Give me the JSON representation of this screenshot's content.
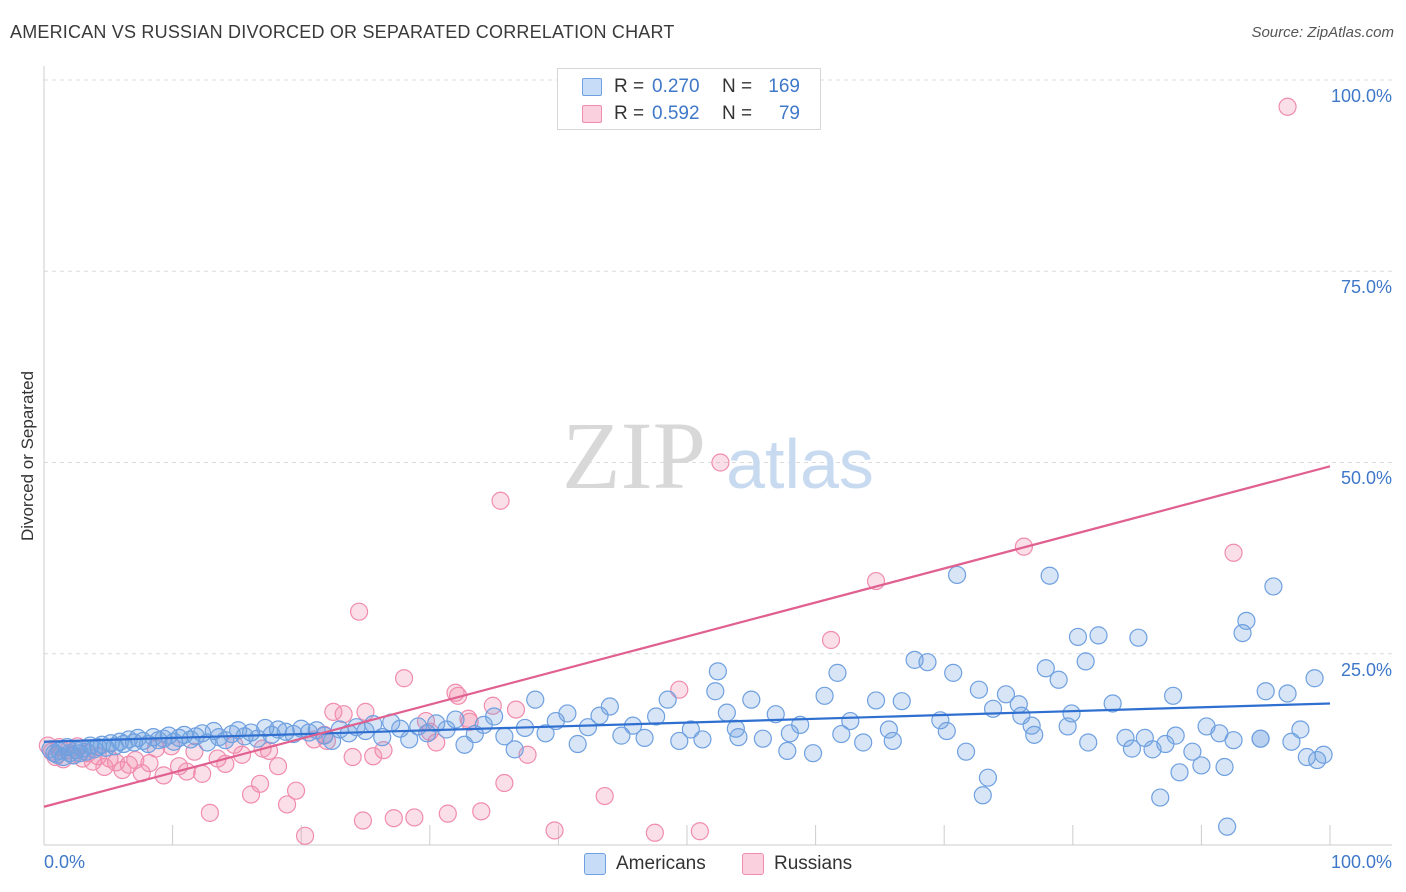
{
  "title": "AMERICAN VS RUSSIAN DIVORCED OR SEPARATED CORRELATION CHART",
  "source": "Source: ZipAtlas.com",
  "watermark": {
    "zip": "ZIP",
    "atlas": "atlas"
  },
  "legend": {
    "rows": [
      {
        "r_label": "R =",
        "r_value": "0.270",
        "n_label": "N =",
        "n_value": "169",
        "color": "#6fa0e0"
      },
      {
        "r_label": "R =",
        "r_value": "0.592",
        "n_label": "N =",
        "n_value": "79",
        "color": "#f08cae"
      }
    ]
  },
  "bottom_legend": [
    {
      "label": "Americans",
      "color": "#6fa0e0"
    },
    {
      "label": "Russians",
      "color": "#f08cae"
    }
  ],
  "chart_data": {
    "type": "scatter",
    "title": "AMERICAN VS RUSSIAN DIVORCED OR SEPARATED CORRELATION CHART",
    "xlabel": "",
    "ylabel": "Divorced or Separated",
    "xlim": [
      0,
      100
    ],
    "ylim": [
      0,
      100
    ],
    "x_tick_labels": [
      "0.0%",
      "100.0%"
    ],
    "y_tick_labels": [
      "25.0%",
      "50.0%",
      "75.0%",
      "100.0%"
    ],
    "y_ticks": [
      25,
      50,
      75,
      100
    ],
    "grid": "horizontal dashed",
    "legend_position": "top-center",
    "series": [
      {
        "name": "Americans",
        "color": "#6fa0e0",
        "line_color": "#2f6fd0",
        "trend": {
          "x": [
            0,
            100
          ],
          "y": [
            13.5,
            18.5
          ]
        },
        "points": [
          [
            0.5,
            12.5
          ],
          [
            0.8,
            12
          ],
          [
            1,
            11.8
          ],
          [
            1.2,
            12.3
          ],
          [
            1.5,
            11.5
          ],
          [
            1.8,
            12.8
          ],
          [
            2,
            12
          ],
          [
            2.3,
            11.7
          ],
          [
            2.5,
            12.4
          ],
          [
            2.8,
            12
          ],
          [
            3,
            12.6
          ],
          [
            3.3,
            12.2
          ],
          [
            3.6,
            13
          ],
          [
            3.9,
            12.5
          ],
          [
            4.2,
            12.8
          ],
          [
            4.5,
            13.1
          ],
          [
            4.8,
            12.7
          ],
          [
            5.2,
            13.3
          ],
          [
            5.5,
            12.9
          ],
          [
            5.9,
            13.5
          ],
          [
            6.2,
            13.2
          ],
          [
            6.6,
            13.8
          ],
          [
            7,
            13.4
          ],
          [
            7.3,
            14
          ],
          [
            7.7,
            13.6
          ],
          [
            8.1,
            13.2
          ],
          [
            8.5,
            14.1
          ],
          [
            8.9,
            13.7
          ],
          [
            9.3,
            13.9
          ],
          [
            9.7,
            14.3
          ],
          [
            10.1,
            13.5
          ],
          [
            10.5,
            14
          ],
          [
            10.9,
            14.4
          ],
          [
            11.4,
            13.8
          ],
          [
            11.8,
            14.2
          ],
          [
            12.3,
            14.6
          ],
          [
            12.7,
            13.4
          ],
          [
            13.2,
            14.9
          ],
          [
            13.6,
            14.1
          ],
          [
            14.1,
            13.7
          ],
          [
            14.6,
            14.5
          ],
          [
            15.1,
            15
          ],
          [
            15.6,
            14.2
          ],
          [
            16.1,
            14.7
          ],
          [
            16.6,
            13.9
          ],
          [
            17.2,
            15.3
          ],
          [
            17.7,
            14.4
          ],
          [
            18.2,
            15.1
          ],
          [
            18.8,
            14.8
          ],
          [
            19.4,
            14.5
          ],
          [
            20,
            15.2
          ],
          [
            20.6,
            14.7
          ],
          [
            21.2,
            15
          ],
          [
            21.8,
            14.3
          ],
          [
            22.4,
            13.6
          ],
          [
            23,
            15.1
          ],
          [
            23.7,
            14.6
          ],
          [
            24.3,
            15.4
          ],
          [
            25,
            14.9
          ],
          [
            25.6,
            15.8
          ],
          [
            26.3,
            14.1
          ],
          [
            27,
            16
          ],
          [
            27.7,
            15.2
          ],
          [
            28.4,
            13.8
          ],
          [
            29.1,
            15.5
          ],
          [
            29.8,
            14.6
          ],
          [
            30.5,
            15.9
          ],
          [
            31.3,
            15.1
          ],
          [
            32,
            16.4
          ],
          [
            32.7,
            13.1
          ],
          [
            33.5,
            14.5
          ],
          [
            34.2,
            15.7
          ],
          [
            35,
            16.8
          ],
          [
            35.8,
            14.2
          ],
          [
            36.6,
            12.5
          ],
          [
            37.4,
            15.3
          ],
          [
            38.2,
            19
          ],
          [
            39,
            14.6
          ],
          [
            39.8,
            16.2
          ],
          [
            40.7,
            17.2
          ],
          [
            41.5,
            13.2
          ],
          [
            42.3,
            15.4
          ],
          [
            43.2,
            16.9
          ],
          [
            44,
            18.1
          ],
          [
            44.9,
            14.3
          ],
          [
            45.8,
            15.6
          ],
          [
            46.7,
            14
          ],
          [
            47.6,
            16.8
          ],
          [
            48.5,
            19
          ],
          [
            49.4,
            13.6
          ],
          [
            50.3,
            15.1
          ],
          [
            51.2,
            13.8
          ],
          [
            52.2,
            20.1
          ],
          [
            53.1,
            17.3
          ],
          [
            54,
            14.1
          ],
          [
            55,
            19
          ],
          [
            55.9,
            13.9
          ],
          [
            56.9,
            17.1
          ],
          [
            57.8,
            12.3
          ],
          [
            58.8,
            15.7
          ],
          [
            59.8,
            12
          ],
          [
            60.7,
            19.5
          ],
          [
            61.7,
            22.5
          ],
          [
            62.7,
            16.2
          ],
          [
            63.7,
            13.4
          ],
          [
            64.7,
            18.9
          ],
          [
            65.7,
            15.1
          ],
          [
            66.7,
            18.8
          ],
          [
            67.7,
            24.2
          ],
          [
            68.7,
            23.9
          ],
          [
            69.7,
            16.3
          ],
          [
            70.7,
            22.5
          ],
          [
            71.7,
            12.2
          ],
          [
            72.7,
            20.3
          ],
          [
            73.8,
            17.8
          ],
          [
            74.8,
            19.7
          ],
          [
            75.8,
            18.4
          ],
          [
            76.8,
            15.6
          ],
          [
            77.9,
            23.1
          ],
          [
            78.9,
            21.6
          ],
          [
            79.9,
            17.2
          ],
          [
            81,
            24
          ],
          [
            82,
            27.4
          ],
          [
            83.1,
            18.5
          ],
          [
            84.1,
            14
          ],
          [
            85.1,
            27.1
          ],
          [
            86.2,
            12.5
          ],
          [
            87.2,
            13.2
          ],
          [
            88.3,
            9.5
          ],
          [
            89.3,
            12.2
          ],
          [
            90.4,
            15.5
          ],
          [
            91.4,
            14.6
          ],
          [
            92.5,
            13.7
          ],
          [
            93.5,
            29.3
          ],
          [
            94.6,
            13.9
          ],
          [
            95.6,
            33.8
          ],
          [
            96.7,
            19.8
          ],
          [
            97.7,
            15.1
          ],
          [
            98.8,
            21.8
          ],
          [
            99.5,
            11.8
          ],
          [
            53.8,
            15.2
          ],
          [
            58,
            14.6
          ],
          [
            62,
            14.5
          ],
          [
            66,
            13.6
          ],
          [
            70.2,
            14.9
          ],
          [
            73.4,
            8.8
          ],
          [
            76,
            16.9
          ],
          [
            80.4,
            27.2
          ],
          [
            84.6,
            12.6
          ],
          [
            86.8,
            6.2
          ],
          [
            88,
            14.3
          ],
          [
            90,
            10.4
          ],
          [
            91.8,
            10.2
          ],
          [
            93.2,
            27.7
          ],
          [
            95,
            20.1
          ],
          [
            97,
            13.5
          ],
          [
            98.2,
            11.5
          ],
          [
            99,
            11.1
          ],
          [
            92,
            2.4
          ],
          [
            79.6,
            15.5
          ],
          [
            73,
            6.5
          ],
          [
            77,
            14.4
          ],
          [
            81.2,
            13.4
          ],
          [
            71,
            35.3
          ],
          [
            78.2,
            35.2
          ],
          [
            85.6,
            14
          ],
          [
            87.8,
            19.5
          ],
          [
            94.6,
            13.9
          ],
          [
            52.4,
            22.7
          ]
        ]
      },
      {
        "name": "Russians",
        "color": "#f08cae",
        "line_color": "#e0608f",
        "trend": {
          "x": [
            0,
            100
          ],
          "y": [
            5,
            49.5
          ]
        },
        "points": [
          [
            0.3,
            13
          ],
          [
            0.6,
            12.2
          ],
          [
            0.9,
            11.5
          ],
          [
            1.2,
            12.8
          ],
          [
            1.5,
            11.2
          ],
          [
            1.9,
            12.4
          ],
          [
            2.2,
            11.8
          ],
          [
            2.6,
            12.9
          ],
          [
            3,
            11.3
          ],
          [
            3.4,
            12
          ],
          [
            3.8,
            10.9
          ],
          [
            4.2,
            11.6
          ],
          [
            4.7,
            10.2
          ],
          [
            5.1,
            11.3
          ],
          [
            5.6,
            10.8
          ],
          [
            6.1,
            9.8
          ],
          [
            6.6,
            10.5
          ],
          [
            7.1,
            11.1
          ],
          [
            7.6,
            9.4
          ],
          [
            8.2,
            10.7
          ],
          [
            8.7,
            12.6
          ],
          [
            9.3,
            9.1
          ],
          [
            9.9,
            12.9
          ],
          [
            10.5,
            10.3
          ],
          [
            11.1,
            9.6
          ],
          [
            11.7,
            12.2
          ],
          [
            12.3,
            9.3
          ],
          [
            12.9,
            4.2
          ],
          [
            13.5,
            11.3
          ],
          [
            14.1,
            10.6
          ],
          [
            14.8,
            13.1
          ],
          [
            15.4,
            11.8
          ],
          [
            16.1,
            6.6
          ],
          [
            16.8,
            8
          ],
          [
            17.5,
            12.3
          ],
          [
            18.2,
            10.3
          ],
          [
            18.9,
            5.3
          ],
          [
            19.6,
            7.1
          ],
          [
            20.3,
            1.2
          ],
          [
            21,
            13.8
          ],
          [
            21.8,
            14.4
          ],
          [
            22.5,
            17.4
          ],
          [
            23.3,
            17.1
          ],
          [
            24,
            11.5
          ],
          [
            24.8,
            3.2
          ],
          [
            25.6,
            11.6
          ],
          [
            26.4,
            12.4
          ],
          [
            27.2,
            3.5
          ],
          [
            28,
            21.8
          ],
          [
            28.8,
            3.6
          ],
          [
            29.7,
            16.2
          ],
          [
            30.5,
            13.4
          ],
          [
            31.4,
            4.1
          ],
          [
            32.2,
            19.5
          ],
          [
            33.1,
            16.1
          ],
          [
            34,
            4.4
          ],
          [
            34.9,
            18.2
          ],
          [
            35.8,
            8.1
          ],
          [
            36.7,
            17.7
          ],
          [
            37.6,
            11.8
          ],
          [
            35.5,
            45
          ],
          [
            32,
            19.9
          ],
          [
            24.5,
            30.5
          ],
          [
            52.6,
            50
          ],
          [
            61.2,
            26.8
          ],
          [
            76.2,
            39
          ],
          [
            64.7,
            34.5
          ],
          [
            96.7,
            96.5
          ],
          [
            92.5,
            38.2
          ],
          [
            49.4,
            20.3
          ],
          [
            39.7,
            1.9
          ],
          [
            43.6,
            6.4
          ],
          [
            47.5,
            1.6
          ],
          [
            51,
            1.8
          ],
          [
            17,
            12.6
          ],
          [
            22,
            13.6
          ],
          [
            25,
            17.4
          ],
          [
            30,
            14.8
          ],
          [
            33,
            16.5
          ]
        ]
      }
    ]
  }
}
